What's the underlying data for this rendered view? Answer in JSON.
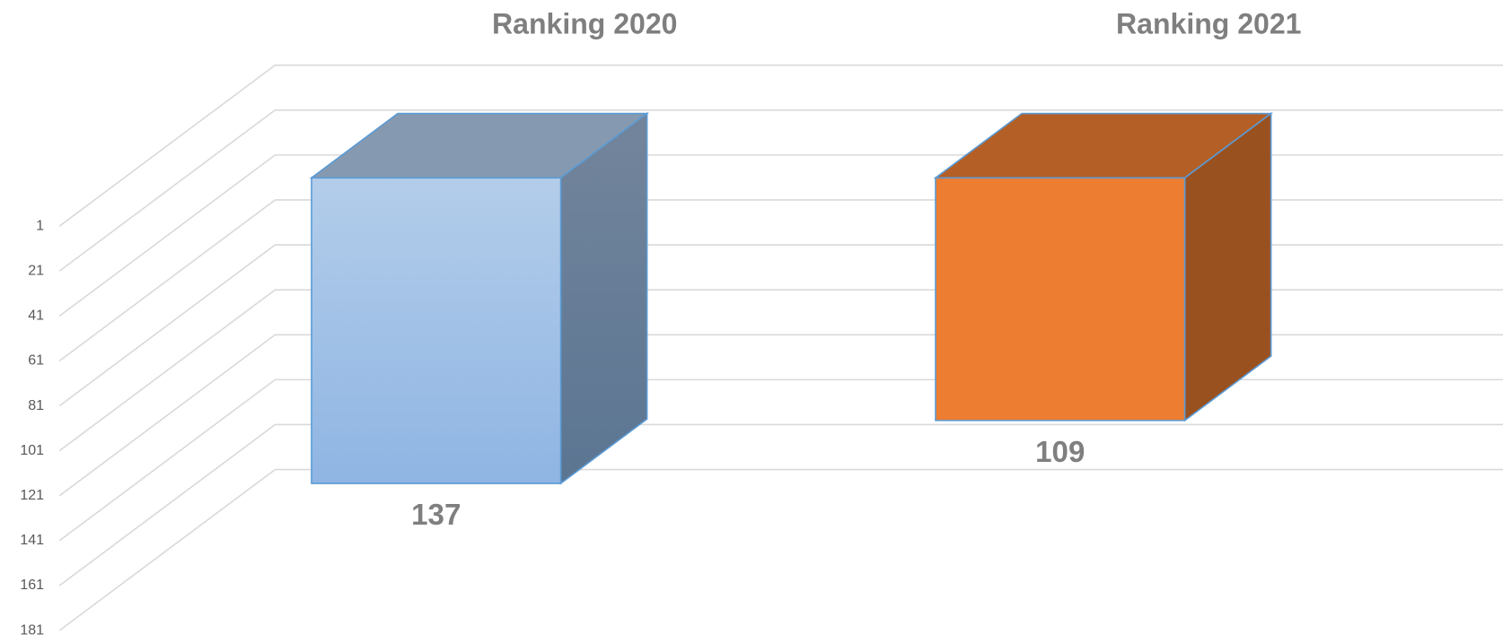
{
  "chart_data": {
    "type": "bar3d",
    "categories": [
      "Ranking 2020",
      "Ranking 2021"
    ],
    "values": [
      137,
      109
    ],
    "colors": [
      "#9dbde6",
      "#ed7d31"
    ],
    "ylim": [
      1,
      181
    ],
    "yticks": [
      1,
      21,
      41,
      61,
      81,
      101,
      121,
      141,
      161,
      181
    ],
    "y_reversed": true,
    "grid": true
  }
}
